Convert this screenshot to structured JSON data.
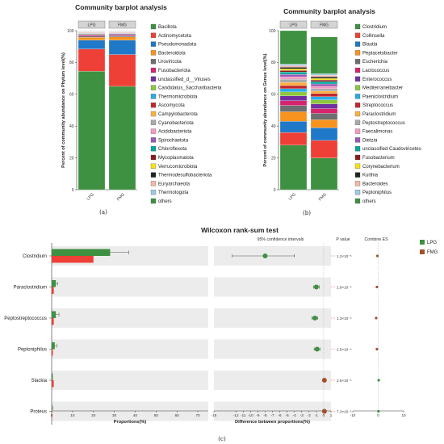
{
  "chart_data": [
    {
      "type": "bar",
      "stacked": true,
      "title": "Community barplot analysis",
      "ylabel": "Percent of community abundance on Phylum level(%)",
      "categories": [
        "LPG",
        "FMG"
      ],
      "ylim": [
        0,
        100
      ],
      "yticks": [
        "0",
        "20",
        "40",
        "60",
        "80",
        "100"
      ],
      "caption": "(a)",
      "series": [
        {
          "name": "Bacillota",
          "color": "#3d9140",
          "values": [
            74.5,
            65
          ]
        },
        {
          "name": "Actinomycetota",
          "color": "#ee4036",
          "values": [
            14,
            20
          ]
        },
        {
          "name": "Pseudomonadota",
          "color": "#1f78c8",
          "values": [
            5.5,
            9
          ]
        },
        {
          "name": "Bacteroidota",
          "color": "#f7931e",
          "values": [
            1.8,
            2
          ]
        },
        {
          "name": "Uroviricota",
          "color": "#6d6e71",
          "values": [
            0.8,
            0.8
          ]
        },
        {
          "name": "Fusobacteriota",
          "color": "#d6246e",
          "values": [
            0.6,
            0.5
          ]
        },
        {
          "name": "unclassified_d__Viruses",
          "color": "#7030a0",
          "values": [
            0.5,
            0.5
          ]
        },
        {
          "name": "Candidatus_Saccharibacteria",
          "color": "#8dc63f",
          "values": [
            0.4,
            0.3
          ]
        },
        {
          "name": "Thermomicrobiota",
          "color": "#29abe2",
          "values": [
            0.3,
            0.3
          ]
        },
        {
          "name": "Ascomycota",
          "color": "#c1272d",
          "values": [
            0.3,
            0.3
          ]
        },
        {
          "name": "Campylobacterota",
          "color": "#fbb040",
          "values": [
            0.2,
            0.2
          ]
        },
        {
          "name": "Cyanobacteriota",
          "color": "#a7a9ac",
          "values": [
            0.2,
            0.2
          ]
        },
        {
          "name": "Acidobacteriota",
          "color": "#f49ac2",
          "values": [
            0.2,
            0.2
          ]
        },
        {
          "name": "Spirochaetota",
          "color": "#9b59b6",
          "values": [
            0.1,
            0.1
          ]
        },
        {
          "name": "Chloroflexota",
          "color": "#00a99d",
          "values": [
            0.1,
            0.1
          ]
        },
        {
          "name": "Mycoplasmatota",
          "color": "#8b1a1a",
          "values": [
            0.1,
            0.1
          ]
        },
        {
          "name": "Verrucomicrobiota",
          "color": "#f7e018",
          "values": [
            0.1,
            0.1
          ]
        },
        {
          "name": "Thermodesulfobacteriota",
          "color": "#222222",
          "values": [
            0.1,
            0.1
          ]
        },
        {
          "name": "Euryarchaeota",
          "color": "#f4b6a8",
          "values": [
            0.1,
            0.1
          ]
        },
        {
          "name": "Thermotogota",
          "color": "#9ecae1",
          "values": [
            0.1,
            0.1
          ]
        },
        {
          "name": "others",
          "color": "#3d9140",
          "values": [
            0.1,
            0.1
          ]
        }
      ]
    },
    {
      "type": "bar",
      "stacked": true,
      "title": "Community barplot analysis",
      "ylabel": "Percent of community abundance on Genus level(%)",
      "categories": [
        "LPG",
        "FMG"
      ],
      "ylim": [
        0,
        100
      ],
      "yticks": [
        "0",
        "20",
        "40",
        "60",
        "80",
        "100"
      ],
      "caption": "(b)",
      "series": [
        {
          "name": "Clostridium",
          "color": "#3d9140",
          "values": [
            28,
            20
          ]
        },
        {
          "name": "Collinsella",
          "color": "#ee4036",
          "values": [
            8,
            11
          ]
        },
        {
          "name": "Blautia",
          "color": "#1f78c8",
          "values": [
            7,
            8
          ]
        },
        {
          "name": "Peptacetobacter",
          "color": "#f7931e",
          "values": [
            6,
            5
          ]
        },
        {
          "name": "Escherichia",
          "color": "#6d6e71",
          "values": [
            4,
            4
          ]
        },
        {
          "name": "Lactococcus",
          "color": "#d6246e",
          "values": [
            3,
            3
          ]
        },
        {
          "name": "Enterococcus",
          "color": "#7030a0",
          "values": [
            3,
            3
          ]
        },
        {
          "name": "Mediterraneibacter",
          "color": "#8dc63f",
          "values": [
            2.5,
            2.5
          ]
        },
        {
          "name": "Paeniclostridium",
          "color": "#29abe2",
          "values": [
            2,
            2
          ]
        },
        {
          "name": "Streptococcus",
          "color": "#c1272d",
          "values": [
            2,
            2
          ]
        },
        {
          "name": "Paraclostridium",
          "color": "#fbb040",
          "values": [
            2,
            1.5
          ]
        },
        {
          "name": "Peptostreptococcus",
          "color": "#a7a9ac",
          "values": [
            2,
            1.5
          ]
        },
        {
          "name": "Faecalimonas",
          "color": "#f49ac2",
          "values": [
            1.5,
            1.5
          ]
        },
        {
          "name": "Dietzia",
          "color": "#9b59b6",
          "values": [
            1.5,
            1.5
          ]
        },
        {
          "name": "unclassified Caudoviricetes",
          "color": "#00a99d",
          "values": [
            1.5,
            1.5
          ]
        },
        {
          "name": "Fusobacterium",
          "color": "#8b1a1a",
          "values": [
            1,
            1
          ]
        },
        {
          "name": "Corynebacterium",
          "color": "#f7e018",
          "values": [
            1,
            1
          ]
        },
        {
          "name": "Kurthia",
          "color": "#222222",
          "values": [
            1,
            1
          ]
        },
        {
          "name": "Bacteroides",
          "color": "#f4b6a8",
          "values": [
            1,
            1
          ]
        },
        {
          "name": "Peptoniphilus",
          "color": "#9ecae1",
          "values": [
            1,
            1
          ]
        },
        {
          "name": "others",
          "color": "#3d9140",
          "values": [
            21,
            23
          ]
        }
      ]
    },
    {
      "type": "bar",
      "orientation": "horizontal",
      "title": "Wilcoxon rank-sum test",
      "caption": "(c)",
      "categories": [
        "Clostridium",
        "Paraclostridium",
        "Peptostreptococcus",
        "Peptoniphilus",
        "Slackia",
        "Proteus"
      ],
      "xlabel": "Proportions(%)",
      "xlim": [
        0,
        75
      ],
      "xticks": [
        0,
        10,
        20,
        30,
        40,
        50,
        60,
        70
      ],
      "series": [
        {
          "name": "LPG",
          "color": "#3d9140",
          "values": [
            28,
            2,
            2,
            1.5,
            0.5,
            0.1
          ],
          "err": [
            37,
            3,
            3.5,
            2.5,
            0.3,
            0.5
          ]
        },
        {
          "name": "FMG",
          "color": "#ee4036",
          "values": [
            20,
            1,
            1,
            0.5,
            1,
            0.1
          ],
          "err": [
            15,
            0.6,
            0.6,
            0.5,
            0.4,
            0.1
          ]
        }
      ],
      "legend": [
        "LPG",
        "FMG"
      ],
      "legend_colors": [
        "#3d9140",
        "#a0522d"
      ],
      "ci_panel": {
        "header": "95% confidence intervals",
        "xlabel": "Difference between proportions(%)",
        "xlim": [
          -15,
          1
        ],
        "xticks": [
          -15,
          -12,
          -11,
          -10,
          -9,
          -8,
          -7,
          -6,
          -5,
          -4,
          -3,
          -2,
          -1,
          0,
          1
        ],
        "xtick_labels": [
          "-15",
          "-12",
          "-11",
          "-10",
          "-9",
          "-8",
          "-7",
          "-6",
          "-5",
          "-4",
          "-3",
          "-2",
          "-1",
          "0",
          "1"
        ],
        "diff": [
          -8,
          -1,
          -1.2,
          -0.9,
          0.1,
          0.1
        ],
        "lo": [
          -12.5,
          -1.4,
          -1.6,
          -1.3,
          0.05,
          0.05
        ],
        "hi": [
          -4,
          -0.6,
          -0.8,
          -0.5,
          0.15,
          0.15
        ],
        "colors": [
          "#3d9140",
          "#3d9140",
          "#3d9140",
          "#3d9140",
          "#a0522d",
          "#a0522d"
        ]
      },
      "p_values": {
        "header": "P value",
        "values": [
          "1.2×10⁻⁵",
          "1.9×10⁻⁵",
          "1.3×10⁻⁴",
          "2.5×10⁻⁴",
          "2.5×10⁻⁴",
          "7.3×10⁻⁵"
        ]
      },
      "es_panel": {
        "header": "Combine ES",
        "xlim": [
          -10,
          10
        ],
        "xticks": [
          "-10",
          "0",
          "10"
        ],
        "values": [
          -0.3,
          -0.5,
          -0.8,
          -0.5,
          0.2,
          0.1
        ],
        "colors": [
          "#a0522d",
          "#a0522d",
          "#a0522d",
          "#a0522d",
          "#3d9140",
          "#3d9140"
        ]
      }
    }
  ]
}
